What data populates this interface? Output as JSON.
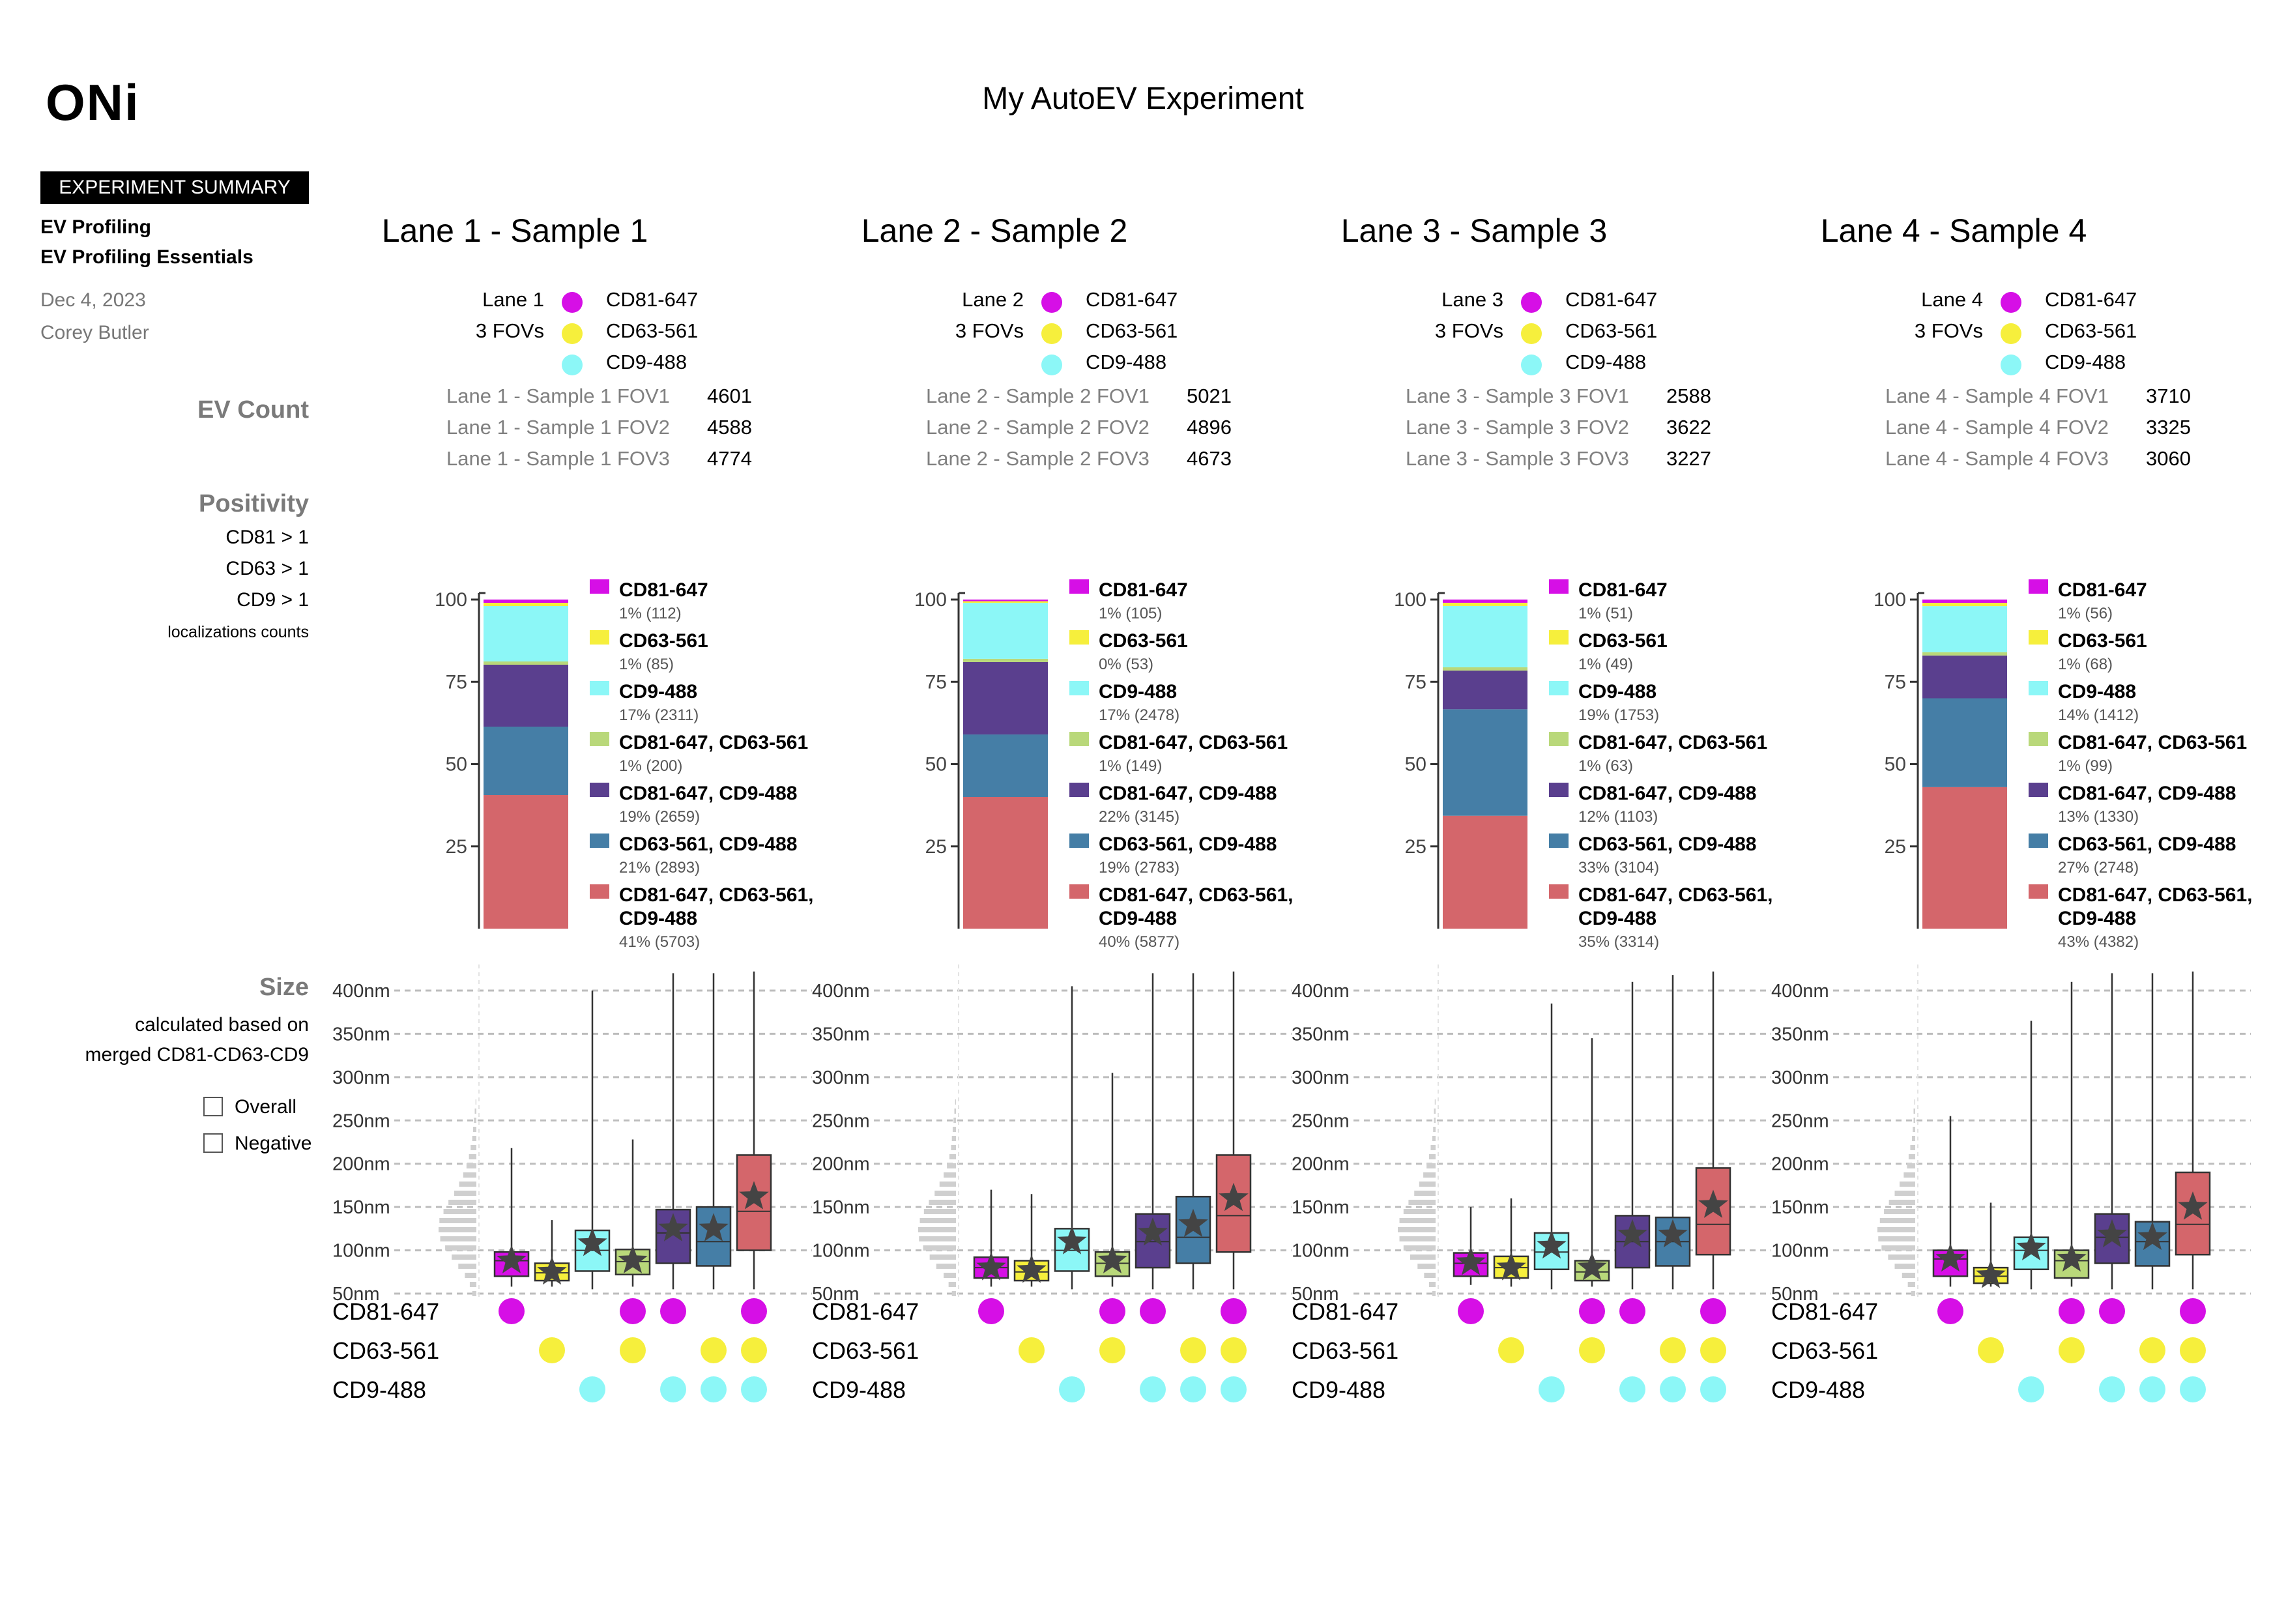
{
  "header": {
    "logo": "ONi",
    "title": "My AutoEV Experiment"
  },
  "summary": {
    "badge": "EXPERIMENT SUMMARY",
    "line1": "EV Profiling",
    "line2": "EV Profiling Essentials",
    "date": "Dec 4, 2023",
    "author": "Corey Butler"
  },
  "sections": {
    "ev_count": "EV Count",
    "positivity": "Positivity",
    "positivity_rules": [
      "CD81 > 1",
      "CD63 > 1",
      "CD9 > 1"
    ],
    "positivity_note": "localizations counts",
    "size": "Size",
    "size_note1": "calculated based on",
    "size_note2": "merged CD81-CD63-CD9",
    "overall": "Overall",
    "negative": "Negative"
  },
  "colors": {
    "CD81-647": "#d60fe6",
    "CD63-561": "#f6ef3c",
    "CD9-488": "#8cf7f7",
    "CD81-647, CD63-561": "#b9d87a",
    "CD81-647, CD9-488": "#5a3f8e",
    "CD63-561, CD9-488": "#457ea6",
    "CD81-647, CD63-561, CD9-488": "#d4666b"
  },
  "markers": [
    "CD81-647",
    "CD63-561",
    "CD9-488"
  ],
  "lanes": [
    {
      "title": "Lane 1 - Sample 1",
      "lane_label": "Lane 1",
      "fovs_label": "3 FOVs",
      "fovs": [
        {
          "name": "Lane 1 - Sample 1 FOV1",
          "count": "4601"
        },
        {
          "name": "Lane 1 - Sample 1 FOV2",
          "count": "4588"
        },
        {
          "name": "Lane 1 - Sample 1 FOV3",
          "count": "4774"
        }
      ]
    },
    {
      "title": "Lane 2 - Sample 2",
      "lane_label": "Lane 2",
      "fovs_label": "3 FOVs",
      "fovs": [
        {
          "name": "Lane 2 - Sample 2 FOV1",
          "count": "5021"
        },
        {
          "name": "Lane 2 - Sample 2 FOV2",
          "count": "4896"
        },
        {
          "name": "Lane 2 - Sample 2 FOV3",
          "count": "4673"
        }
      ]
    },
    {
      "title": "Lane 3 - Sample 3",
      "lane_label": "Lane 3",
      "fovs_label": "3 FOVs",
      "fovs": [
        {
          "name": "Lane 3 - Sample 3 FOV1",
          "count": "2588"
        },
        {
          "name": "Lane 3 - Sample 3 FOV2",
          "count": "3622"
        },
        {
          "name": "Lane 3 - Sample 3 FOV3",
          "count": "3227"
        }
      ]
    },
    {
      "title": "Lane 4 - Sample 4",
      "lane_label": "Lane 4",
      "fovs_label": "3 FOVs",
      "fovs": [
        {
          "name": "Lane 4 - Sample 4 FOV1",
          "count": "3710"
        },
        {
          "name": "Lane 4 - Sample 4 FOV2",
          "count": "3325"
        },
        {
          "name": "Lane 4 - Sample 4 FOV3",
          "count": "3060"
        }
      ]
    }
  ],
  "chart_data": [
    {
      "type": "bar",
      "chart": "positivity stacked bar",
      "lane": "Lane 1 - Sample 1",
      "ylim": [
        0,
        100
      ],
      "yticks": [
        25,
        50,
        75,
        100
      ],
      "segments": [
        {
          "name": "CD81-647",
          "pct": 1,
          "label": "1% (112)"
        },
        {
          "name": "CD63-561",
          "pct": 1,
          "label": "1% (85)"
        },
        {
          "name": "CD9-488",
          "pct": 17,
          "label": "17% (2311)"
        },
        {
          "name": "CD81-647, CD63-561",
          "pct": 1,
          "label": "1% (200)"
        },
        {
          "name": "CD81-647, CD9-488",
          "pct": 19,
          "label": "19% (2659)"
        },
        {
          "name": "CD63-561, CD9-488",
          "pct": 21,
          "label": "21% (2893)"
        },
        {
          "name": "CD81-647, CD63-561, CD9-488",
          "pct": 41,
          "label": "41% (5703)"
        }
      ]
    },
    {
      "type": "bar",
      "chart": "positivity stacked bar",
      "lane": "Lane 2 - Sample 2",
      "ylim": [
        0,
        100
      ],
      "yticks": [
        25,
        50,
        75,
        100
      ],
      "segments": [
        {
          "name": "CD81-647",
          "pct": 1,
          "label": "1% (105)"
        },
        {
          "name": "CD63-561",
          "pct": 0,
          "label": "0% (53)"
        },
        {
          "name": "CD9-488",
          "pct": 17,
          "label": "17% (2478)"
        },
        {
          "name": "CD81-647, CD63-561",
          "pct": 1,
          "label": "1% (149)"
        },
        {
          "name": "CD81-647, CD9-488",
          "pct": 22,
          "label": "22% (3145)"
        },
        {
          "name": "CD63-561, CD9-488",
          "pct": 19,
          "label": "19% (2783)"
        },
        {
          "name": "CD81-647, CD63-561, CD9-488",
          "pct": 40,
          "label": "40% (5877)"
        }
      ]
    },
    {
      "type": "bar",
      "chart": "positivity stacked bar",
      "lane": "Lane 3 - Sample 3",
      "ylim": [
        0,
        100
      ],
      "yticks": [
        25,
        50,
        75,
        100
      ],
      "segments": [
        {
          "name": "CD81-647",
          "pct": 1,
          "label": "1% (51)"
        },
        {
          "name": "CD63-561",
          "pct": 1,
          "label": "1% (49)"
        },
        {
          "name": "CD9-488",
          "pct": 19,
          "label": "19% (1753)"
        },
        {
          "name": "CD81-647, CD63-561",
          "pct": 1,
          "label": "1% (63)"
        },
        {
          "name": "CD81-647, CD9-488",
          "pct": 12,
          "label": "12% (1103)"
        },
        {
          "name": "CD63-561, CD9-488",
          "pct": 33,
          "label": "33% (3104)"
        },
        {
          "name": "CD81-647, CD63-561, CD9-488",
          "pct": 35,
          "label": "35% (3314)"
        }
      ]
    },
    {
      "type": "bar",
      "chart": "positivity stacked bar",
      "lane": "Lane 4 - Sample 4",
      "ylim": [
        0,
        100
      ],
      "yticks": [
        25,
        50,
        75,
        100
      ],
      "segments": [
        {
          "name": "CD81-647",
          "pct": 1,
          "label": "1% (56)"
        },
        {
          "name": "CD63-561",
          "pct": 1,
          "label": "1% (68)"
        },
        {
          "name": "CD9-488",
          "pct": 14,
          "label": "14% (1412)"
        },
        {
          "name": "CD81-647, CD63-561",
          "pct": 1,
          "label": "1% (99)"
        },
        {
          "name": "CD81-647, CD9-488",
          "pct": 13,
          "label": "13% (1330)"
        },
        {
          "name": "CD63-561, CD9-488",
          "pct": 27,
          "label": "27% (2748)"
        },
        {
          "name": "CD81-647, CD63-561, CD9-488",
          "pct": 43,
          "label": "43% (4382)"
        }
      ]
    },
    {
      "type": "boxplot",
      "chart": "size distribution",
      "lane": "Lane 1 - Sample 1",
      "unit": "nm",
      "yticks": [
        "50nm",
        "100nm",
        "150nm",
        "200nm",
        "250nm",
        "300nm",
        "350nm",
        "400nm"
      ],
      "ylim": [
        50,
        430
      ],
      "histogram": [
        5,
        8,
        14,
        22,
        30,
        38,
        44,
        46,
        45,
        40,
        34,
        27,
        21,
        16,
        12,
        9,
        7,
        5,
        4,
        3,
        2,
        1
      ],
      "boxes": [
        {
          "name": "CD81-647",
          "min": 58,
          "q1": 70,
          "median": 88,
          "q3": 98,
          "max": 218,
          "mean": 88
        },
        {
          "name": "CD63-561",
          "min": 58,
          "q1": 65,
          "median": 74,
          "q3": 85,
          "max": 135,
          "mean": 75
        },
        {
          "name": "CD9-488",
          "min": 55,
          "q1": 76,
          "median": 100,
          "q3": 123,
          "max": 400,
          "mean": 108
        },
        {
          "name": "CD81-647, CD63-561",
          "min": 58,
          "q1": 72,
          "median": 87,
          "q3": 101,
          "max": 228,
          "mean": 88
        },
        {
          "name": "CD81-647, CD9-488",
          "min": 55,
          "q1": 85,
          "median": 120,
          "q3": 147,
          "max": 420,
          "mean": 125
        },
        {
          "name": "CD63-561, CD9-488",
          "min": 55,
          "q1": 82,
          "median": 110,
          "q3": 150,
          "max": 420,
          "mean": 125
        },
        {
          "name": "CD81-647, CD63-561, CD9-488",
          "min": 55,
          "q1": 100,
          "median": 145,
          "q3": 210,
          "max": 422,
          "mean": 162
        }
      ]
    },
    {
      "type": "boxplot",
      "chart": "size distribution",
      "lane": "Lane 2 - Sample 2",
      "unit": "nm",
      "yticks": [
        "50nm",
        "100nm",
        "150nm",
        "200nm",
        "250nm",
        "300nm",
        "350nm",
        "400nm"
      ],
      "ylim": [
        50,
        430
      ],
      "histogram": [
        5,
        9,
        15,
        24,
        32,
        40,
        45,
        46,
        44,
        39,
        33,
        26,
        20,
        15,
        11,
        8,
        6,
        5,
        4,
        3,
        2,
        1
      ],
      "boxes": [
        {
          "name": "CD81-647",
          "min": 58,
          "q1": 68,
          "median": 80,
          "q3": 92,
          "max": 170,
          "mean": 80
        },
        {
          "name": "CD63-561",
          "min": 58,
          "q1": 65,
          "median": 75,
          "q3": 88,
          "max": 165,
          "mean": 77
        },
        {
          "name": "CD9-488",
          "min": 55,
          "q1": 76,
          "median": 100,
          "q3": 125,
          "max": 405,
          "mean": 110
        },
        {
          "name": "CD81-647, CD63-561",
          "min": 58,
          "q1": 70,
          "median": 85,
          "q3": 98,
          "max": 305,
          "mean": 88
        },
        {
          "name": "CD81-647, CD9-488",
          "min": 55,
          "q1": 80,
          "median": 110,
          "q3": 142,
          "max": 420,
          "mean": 120
        },
        {
          "name": "CD63-561, CD9-488",
          "min": 55,
          "q1": 85,
          "median": 115,
          "q3": 162,
          "max": 420,
          "mean": 130
        },
        {
          "name": "CD81-647, CD63-561, CD9-488",
          "min": 55,
          "q1": 98,
          "median": 140,
          "q3": 210,
          "max": 422,
          "mean": 160
        }
      ]
    },
    {
      "type": "boxplot",
      "chart": "size distribution",
      "lane": "Lane 3 - Sample 3",
      "unit": "nm",
      "yticks": [
        "50nm",
        "100nm",
        "150nm",
        "200nm",
        "250nm",
        "300nm",
        "350nm",
        "400nm"
      ],
      "ylim": [
        50,
        430
      ],
      "histogram": [
        4,
        8,
        14,
        22,
        31,
        39,
        44,
        46,
        44,
        39,
        33,
        26,
        20,
        15,
        11,
        8,
        6,
        4,
        3,
        2,
        2,
        1
      ],
      "boxes": [
        {
          "name": "CD81-647",
          "min": 60,
          "q1": 70,
          "median": 85,
          "q3": 97,
          "max": 150,
          "mean": 86
        },
        {
          "name": "CD63-561",
          "min": 58,
          "q1": 68,
          "median": 80,
          "q3": 93,
          "max": 160,
          "mean": 80
        },
        {
          "name": "CD9-488",
          "min": 55,
          "q1": 78,
          "median": 98,
          "q3": 120,
          "max": 385,
          "mean": 105
        },
        {
          "name": "CD81-647, CD63-561",
          "min": 58,
          "q1": 65,
          "median": 75,
          "q3": 88,
          "max": 345,
          "mean": 80
        },
        {
          "name": "CD81-647, CD9-488",
          "min": 55,
          "q1": 80,
          "median": 110,
          "q3": 140,
          "max": 410,
          "mean": 118
        },
        {
          "name": "CD63-561, CD9-488",
          "min": 55,
          "q1": 82,
          "median": 110,
          "q3": 138,
          "max": 418,
          "mean": 118
        },
        {
          "name": "CD81-647, CD63-561, CD9-488",
          "min": 55,
          "q1": 95,
          "median": 130,
          "q3": 195,
          "max": 422,
          "mean": 152
        }
      ]
    },
    {
      "type": "boxplot",
      "chart": "size distribution",
      "lane": "Lane 4 - Sample 4",
      "unit": "nm",
      "yticks": [
        "50nm",
        "100nm",
        "150nm",
        "200nm",
        "250nm",
        "300nm",
        "350nm",
        "400nm"
      ],
      "ylim": [
        50,
        430
      ],
      "histogram": [
        5,
        9,
        16,
        25,
        33,
        41,
        45,
        46,
        43,
        38,
        32,
        25,
        19,
        14,
        10,
        8,
        6,
        4,
        3,
        2,
        2,
        1
      ],
      "boxes": [
        {
          "name": "CD81-647",
          "min": 58,
          "q1": 70,
          "median": 90,
          "q3": 100,
          "max": 255,
          "mean": 90
        },
        {
          "name": "CD63-561",
          "min": 58,
          "q1": 62,
          "median": 70,
          "q3": 80,
          "max": 155,
          "mean": 71
        },
        {
          "name": "CD9-488",
          "min": 55,
          "q1": 78,
          "median": 100,
          "q3": 115,
          "max": 365,
          "mean": 103
        },
        {
          "name": "CD81-647, CD63-561",
          "min": 58,
          "q1": 68,
          "median": 88,
          "q3": 100,
          "max": 410,
          "mean": 90
        },
        {
          "name": "CD81-647, CD9-488",
          "min": 55,
          "q1": 85,
          "median": 115,
          "q3": 142,
          "max": 420,
          "mean": 118
        },
        {
          "name": "CD63-561, CD9-488",
          "min": 55,
          "q1": 82,
          "median": 110,
          "q3": 133,
          "max": 420,
          "mean": 115
        },
        {
          "name": "CD81-647, CD63-561, CD9-488",
          "min": 55,
          "q1": 95,
          "median": 130,
          "q3": 190,
          "max": 422,
          "mean": 150
        }
      ]
    }
  ]
}
